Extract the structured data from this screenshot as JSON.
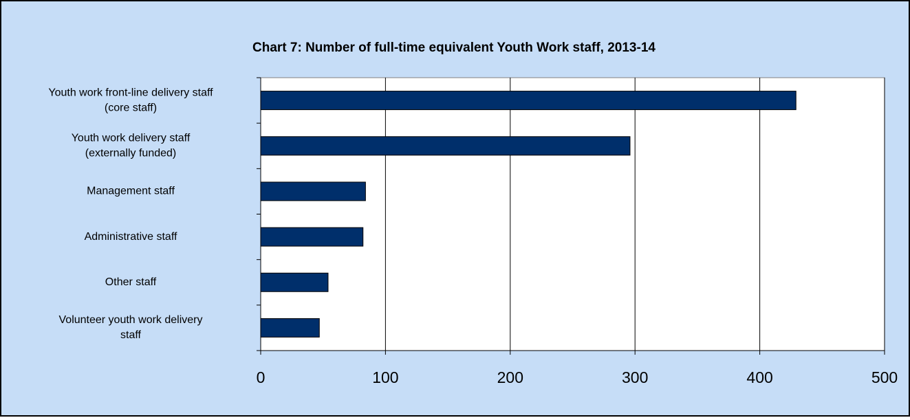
{
  "chart_data": {
    "type": "bar",
    "orientation": "horizontal",
    "title": "Chart 7: Number of full-time equivalent Youth Work staff,  2013-14",
    "categories": [
      [
        "Youth work front-line delivery staff",
        "(core staff)"
      ],
      [
        "Youth work delivery staff",
        "(externally funded)"
      ],
      [
        "Management staff"
      ],
      [
        "Administrative staff"
      ],
      [
        "Other staff"
      ],
      [
        "Volunteer youth work delivery",
        "staff"
      ]
    ],
    "values": [
      429,
      296,
      84,
      82,
      54,
      47
    ],
    "color": "#002f6b",
    "xlim": [
      0,
      500
    ],
    "xticks": [
      0,
      100,
      200,
      300,
      400,
      500
    ],
    "grid": true
  }
}
